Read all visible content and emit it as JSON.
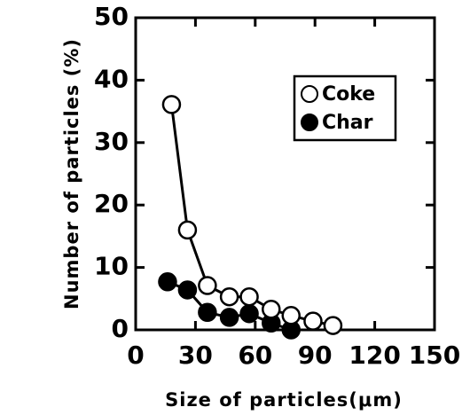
{
  "chart_data": {
    "type": "line",
    "xlabel": "Size of particles(μm)",
    "ylabel": "Number of particles (%)",
    "series": [
      {
        "name": "Coke",
        "color": "#000000",
        "marker": "open",
        "x": [
          18,
          26,
          36,
          47,
          57,
          68,
          78,
          89,
          99
        ],
        "values": [
          36.1,
          16,
          7.1,
          5.3,
          5.3,
          3.3,
          2.3,
          1.4,
          0.7
        ]
      },
      {
        "name": "Char",
        "color": "#000000",
        "marker": "filled",
        "x": [
          16,
          26,
          36,
          47,
          57,
          68,
          78
        ],
        "values": [
          7.7,
          6.4,
          2.8,
          2.0,
          2.6,
          1.1,
          0
        ]
      }
    ],
    "xlim": [
      0,
      150
    ],
    "xticks": [
      0,
      30,
      60,
      90,
      120,
      150
    ],
    "ylim": [
      0,
      50
    ],
    "yticks": [
      0,
      10,
      20,
      30,
      40,
      50
    ],
    "legend": "upper right"
  }
}
